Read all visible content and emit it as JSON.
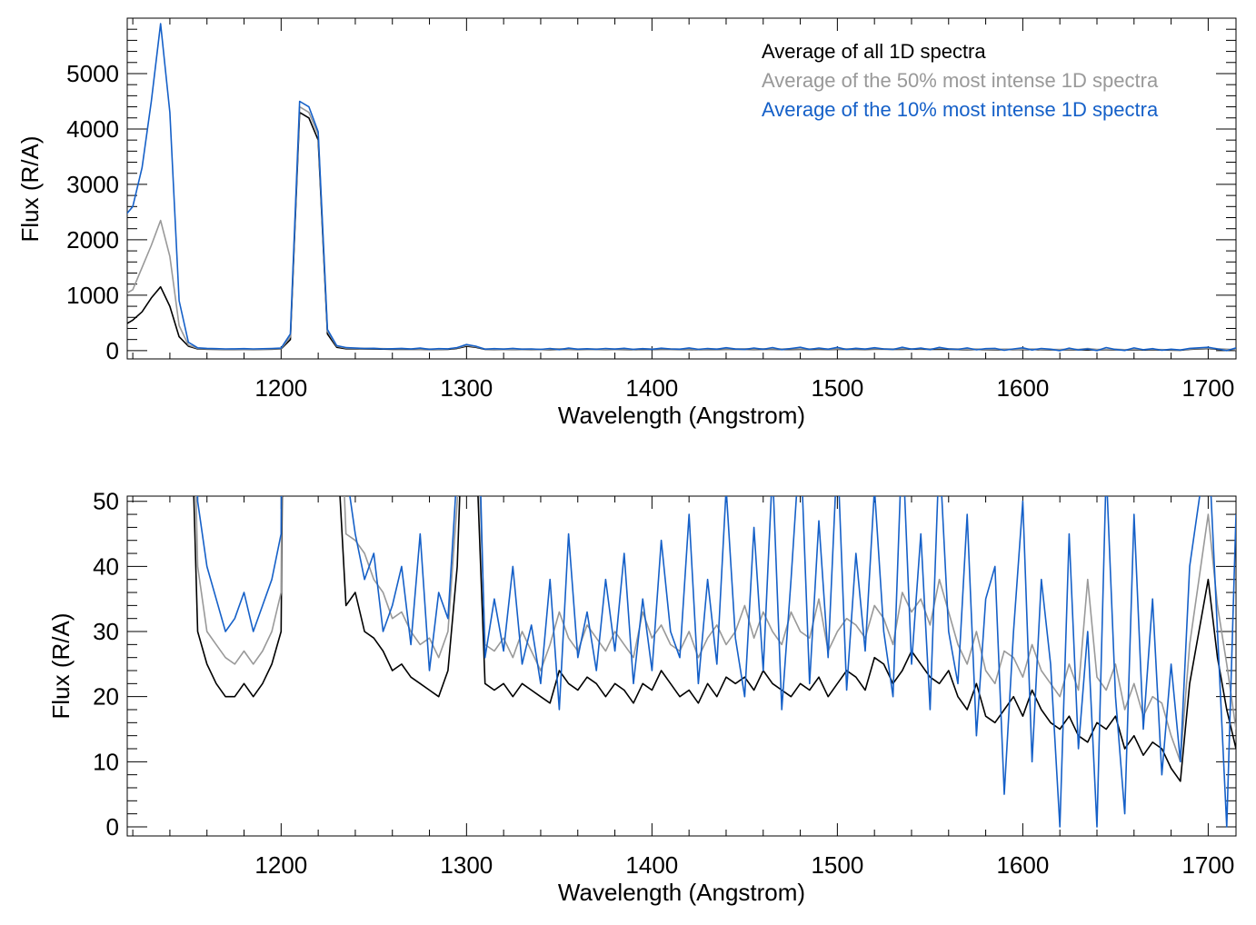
{
  "chart_data": [
    {
      "type": "line",
      "panel": "top",
      "xlabel": "Wavelength (Angstrom)",
      "ylabel": "Flux (R/A)",
      "xlim": [
        1117,
        1715
      ],
      "ylim": [
        -150,
        6000
      ],
      "xticks": [
        1200,
        1300,
        1400,
        1500,
        1600,
        1700
      ],
      "yticks": [
        0,
        1000,
        2000,
        3000,
        4000,
        5000
      ],
      "legend_position": "top-right",
      "legend": [
        "Average of all 1D spectra",
        "Average of the 50% most intense 1D spectra",
        "Average of the 10% most intense 1D spectra"
      ]
    },
    {
      "type": "line",
      "panel": "bottom",
      "xlabel": "Wavelength (Angstrom)",
      "ylabel": "Flux (R/A)",
      "xlim": [
        1117,
        1715
      ],
      "ylim": [
        -1.4,
        50.8
      ],
      "xticks": [
        1200,
        1300,
        1400,
        1500,
        1600,
        1700
      ],
      "yticks": [
        0,
        10,
        20,
        30,
        40,
        50
      ]
    }
  ],
  "series": [
    {
      "name": "Average of all 1D spectra",
      "color": "#000000",
      "values": [
        450,
        550,
        700,
        950,
        1150,
        800,
        250,
        80,
        30,
        25,
        22,
        20,
        20,
        22,
        20,
        22,
        25,
        30,
        200,
        4300,
        4200,
        3800,
        300,
        60,
        34,
        36,
        30,
        29,
        27,
        24,
        25,
        23,
        22,
        21,
        20,
        24,
        40,
        80,
        60,
        22,
        21,
        22,
        20,
        22,
        21,
        20,
        19,
        24,
        22,
        21,
        23,
        22,
        20,
        22,
        21,
        19,
        22,
        21,
        24,
        22,
        20,
        21,
        19,
        22,
        20,
        23,
        22,
        23,
        21,
        24,
        22,
        21,
        20,
        22,
        21,
        23,
        20,
        22,
        24,
        23,
        21,
        26,
        25,
        22,
        24,
        27,
        25,
        23,
        22,
        24,
        20,
        18,
        22,
        17,
        16,
        18,
        20,
        17,
        21,
        18,
        16,
        15,
        17,
        14,
        13,
        16,
        15,
        17,
        12,
        14,
        11,
        13,
        12,
        9,
        7,
        22,
        30,
        38,
        26,
        18,
        12
      ]
    },
    {
      "name": "Average of the 50% most intense 1D spectra",
      "color": "#999999",
      "values": [
        1000,
        1100,
        1500,
        1900,
        2350,
        1700,
        450,
        100,
        40,
        30,
        28,
        26,
        25,
        27,
        25,
        27,
        30,
        36,
        250,
        4400,
        4300,
        3900,
        350,
        80,
        45,
        44,
        42,
        38,
        36,
        32,
        33,
        30,
        28,
        29,
        26,
        30,
        50,
        95,
        70,
        28,
        27,
        29,
        26,
        30,
        27,
        24,
        28,
        33,
        29,
        27,
        31,
        29,
        27,
        30,
        28,
        26,
        33,
        29,
        31,
        28,
        27,
        30,
        26,
        29,
        31,
        28,
        30,
        34,
        29,
        33,
        30,
        28,
        33,
        30,
        29,
        35,
        27,
        30,
        32,
        31,
        29,
        34,
        32,
        28,
        36,
        33,
        35,
        31,
        38,
        33,
        28,
        25,
        30,
        24,
        22,
        27,
        26,
        23,
        28,
        24,
        22,
        20,
        25,
        21,
        38,
        23,
        21,
        25,
        18,
        22,
        17,
        20,
        19,
        14,
        10,
        28,
        38,
        48,
        34,
        25,
        15
      ]
    },
    {
      "name": "Average of the 10% most intense 1D spectra",
      "color": "#1560c8",
      "values": [
        2400,
        2600,
        3300,
        4500,
        5900,
        4300,
        900,
        150,
        50,
        40,
        35,
        30,
        32,
        36,
        30,
        34,
        38,
        45,
        300,
        4500,
        4400,
        3950,
        380,
        90,
        55,
        45,
        38,
        42,
        30,
        34,
        40,
        28,
        45,
        24,
        36,
        32,
        55,
        110,
        80,
        26,
        35,
        27,
        40,
        25,
        31,
        22,
        38,
        18,
        45,
        26,
        33,
        24,
        38,
        27,
        42,
        22,
        35,
        24,
        44,
        30,
        26,
        48,
        22,
        38,
        25,
        52,
        29,
        20,
        46,
        24,
        55,
        18,
        38,
        60,
        22,
        47,
        26,
        58,
        21,
        42,
        27,
        52,
        30,
        20,
        60,
        25,
        45,
        18,
        58,
        30,
        22,
        48,
        14,
        35,
        40,
        5,
        30,
        50,
        10,
        38,
        25,
        0,
        45,
        12,
        30,
        0,
        55,
        20,
        2,
        48,
        15,
        35,
        8,
        25,
        10,
        40,
        50,
        60,
        30,
        0,
        48
      ]
    }
  ],
  "x_wavelengths_start": 1115,
  "x_wavelengths_step": 5
}
